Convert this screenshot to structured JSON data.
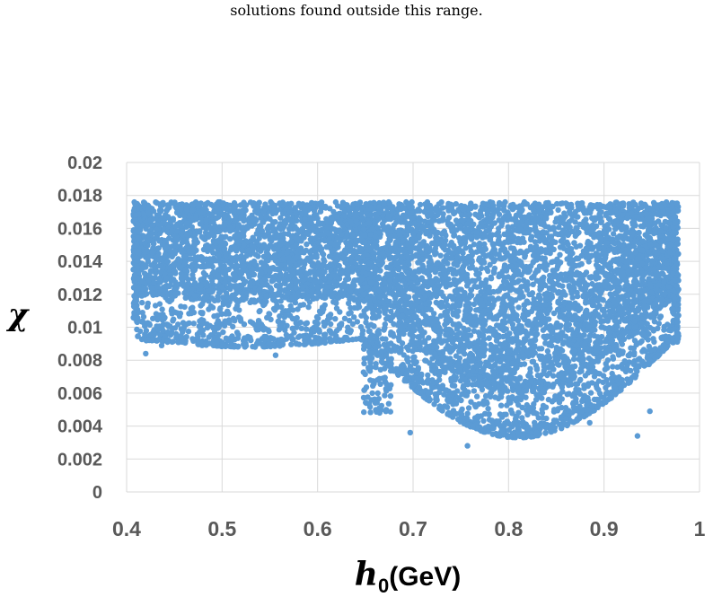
{
  "caption": "solutions found outside this range.",
  "chart_data": {
    "type": "scatter",
    "xlabel_main": "h",
    "xlabel_sub": "0",
    "xlabel_unit": "(GeV)",
    "ylabel": "χ",
    "xlim": [
      0.4,
      1.0
    ],
    "ylim": [
      0,
      0.02
    ],
    "xticks": [
      "0.4",
      "0.5",
      "0.6",
      "0.7",
      "0.8",
      "0.9",
      "1"
    ],
    "yticks": [
      "0",
      "0.002",
      "0.004",
      "0.006",
      "0.008",
      "0.01",
      "0.012",
      "0.014",
      "0.016",
      "0.018",
      "0.02"
    ],
    "grid": true,
    "marker_color": "#5b9bd5",
    "y_max_cutoff": 0.0176,
    "regions": [
      {
        "x_min": 0.41,
        "x_max": 0.645,
        "y_min": 0.0085,
        "y_max": 0.0176,
        "density": "dense"
      },
      {
        "x_min": 0.645,
        "x_max": 0.975,
        "y_min": 0.0028,
        "y_max": 0.0176,
        "density": "dense"
      }
    ],
    "sample_outliers": [
      {
        "x": 0.42,
        "y": 0.0084
      },
      {
        "x": 0.556,
        "y": 0.0083
      },
      {
        "x": 0.757,
        "y": 0.0028
      },
      {
        "x": 0.697,
        "y": 0.0036
      },
      {
        "x": 0.815,
        "y": 0.0034
      },
      {
        "x": 0.935,
        "y": 0.0034
      },
      {
        "x": 0.885,
        "y": 0.0042
      },
      {
        "x": 0.665,
        "y": 0.0048
      },
      {
        "x": 0.948,
        "y": 0.0049
      }
    ]
  }
}
